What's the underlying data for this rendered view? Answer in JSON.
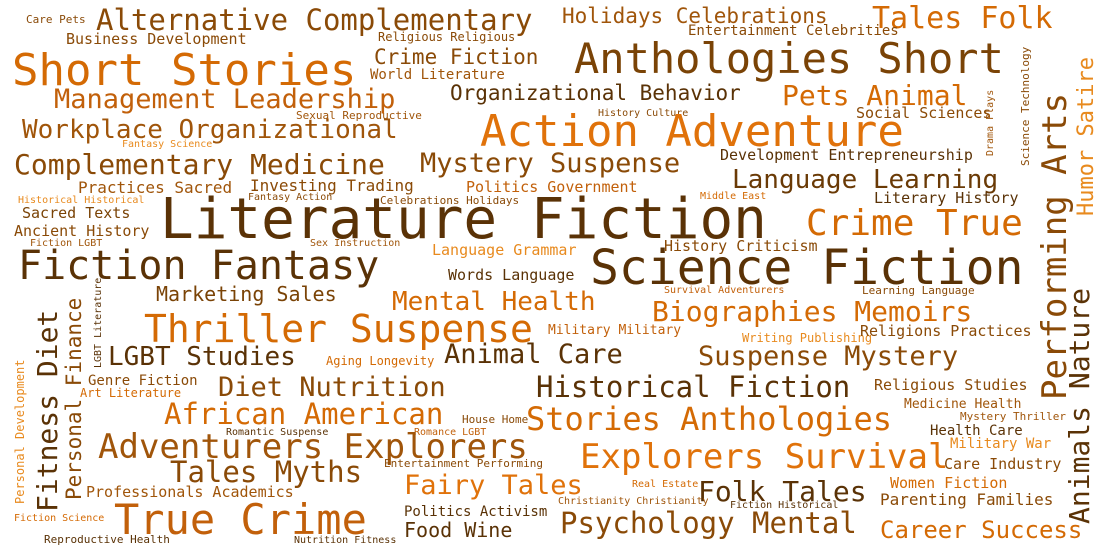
{
  "palette": {
    "dark_brown": "#5a3206",
    "brown": "#8a4a07",
    "orange": "#d46a04",
    "light_orange": "#e88a1e"
  },
  "words": [
    {
      "text": "Care Pets",
      "color": "#8a4a07"
    },
    {
      "text": "Alternative Complementary",
      "color": "#8a4a07"
    },
    {
      "text": "Holidays Celebrations",
      "color": "#a0550a"
    },
    {
      "text": "Tales Folk",
      "color": "#d46a04"
    },
    {
      "text": "Business Development",
      "color": "#8a4a07"
    },
    {
      "text": "Religious Religious",
      "color": "#8a4a07"
    },
    {
      "text": "Entertainment Celebrities",
      "color": "#8a4a07"
    },
    {
      "text": "Crime Fiction",
      "color": "#8a4a07"
    },
    {
      "text": "Short Stories",
      "color": "#d46a04"
    },
    {
      "text": "Anthologies Short",
      "color": "#7a4306"
    },
    {
      "text": "World Literature",
      "color": "#a0550a"
    },
    {
      "text": "Management Leadership",
      "color": "#c2600a"
    },
    {
      "text": "Organizational Behavior",
      "color": "#5a3206"
    },
    {
      "text": "Pets Animal",
      "color": "#d46a04"
    },
    {
      "text": "History Culture",
      "color": "#8a4a07"
    },
    {
      "text": "Sexual Reproductive",
      "color": "#a0550a"
    },
    {
      "text": "Social Sciences",
      "color": "#8a4a07"
    },
    {
      "text": "Workplace Organizational",
      "color": "#a0550a"
    },
    {
      "text": "Action Adventure",
      "color": "#e0720a"
    },
    {
      "text": "Fantasy Science",
      "color": "#e88a1e"
    },
    {
      "text": "Complementary Medicine",
      "color": "#8a4a07"
    },
    {
      "text": "Mystery Suspense",
      "color": "#8a4a07"
    },
    {
      "text": "Development Entrepreneurship",
      "color": "#5a3206"
    },
    {
      "text": "Language Learning",
      "color": "#6a3a06"
    },
    {
      "text": "Practices Sacred",
      "color": "#a0550a"
    },
    {
      "text": "Investing Trading",
      "color": "#8a4a07"
    },
    {
      "text": "Politics Government",
      "color": "#c2600a"
    },
    {
      "text": "Historical Historical",
      "color": "#e88a1e"
    },
    {
      "text": "Fantasy Action",
      "color": "#8a4a07"
    },
    {
      "text": "Celebrations Holidays",
      "color": "#8a4a07"
    },
    {
      "text": "Middle East",
      "color": "#d46a04"
    },
    {
      "text": "Literary History",
      "color": "#5a3206"
    },
    {
      "text": "Sacred Texts",
      "color": "#7a4306"
    },
    {
      "text": "Literature Fiction",
      "color": "#5a3206"
    },
    {
      "text": "Crime True",
      "color": "#d46a04"
    },
    {
      "text": "Ancient History",
      "color": "#8a4a07"
    },
    {
      "text": "Fiction LGBT",
      "color": "#a0550a"
    },
    {
      "text": "Sex Instruction",
      "color": "#a0550a"
    },
    {
      "text": "Language Grammar",
      "color": "#e88a1e"
    },
    {
      "text": "History Criticism",
      "color": "#8a4a07"
    },
    {
      "text": "Fiction Fantasy",
      "color": "#5a3206"
    },
    {
      "text": "Science Fiction",
      "color": "#5a3206"
    },
    {
      "text": "Words Language",
      "color": "#5a3206"
    },
    {
      "text": "Marketing Sales",
      "color": "#7a4306"
    },
    {
      "text": "Survival Adventurers",
      "color": "#c2600a"
    },
    {
      "text": "Learning Language",
      "color": "#8a4a07"
    },
    {
      "text": "Mental Health",
      "color": "#d46a04"
    },
    {
      "text": "Biographies Memoirs",
      "color": "#d46a04"
    },
    {
      "text": "Thriller Suspense",
      "color": "#d46a04"
    },
    {
      "text": "Military Military",
      "color": "#c2600a"
    },
    {
      "text": "Writing Publishing",
      "color": "#e88a1e"
    },
    {
      "text": "Religions Practices",
      "color": "#8a4a07"
    },
    {
      "text": "LGBT Studies",
      "color": "#5a3206"
    },
    {
      "text": "Aging Longevity",
      "color": "#d46a04"
    },
    {
      "text": "Animal Care",
      "color": "#5a3206"
    },
    {
      "text": "Suspense Mystery",
      "color": "#8a4a07"
    },
    {
      "text": "Genre Fiction",
      "color": "#8a4a07"
    },
    {
      "text": "Art Literature",
      "color": "#d46a04"
    },
    {
      "text": "Diet Nutrition",
      "color": "#8a4a07"
    },
    {
      "text": "Historical Fiction",
      "color": "#5a3206"
    },
    {
      "text": "Religious Studies",
      "color": "#8a4a07"
    },
    {
      "text": "African American",
      "color": "#d46a04"
    },
    {
      "text": "Stories Anthologies",
      "color": "#d46a04"
    },
    {
      "text": "House Home",
      "color": "#8a4a07"
    },
    {
      "text": "Medicine Health",
      "color": "#a0550a"
    },
    {
      "text": "Mystery Thriller",
      "color": "#a0550a"
    },
    {
      "text": "Romantic Suspense",
      "color": "#5a3206"
    },
    {
      "text": "Romance LGBT",
      "color": "#c2600a"
    },
    {
      "text": "Health Care",
      "color": "#5a3206"
    },
    {
      "text": "Adventurers Explorers",
      "color": "#a0550a"
    },
    {
      "text": "Military War",
      "color": "#e88a1e"
    },
    {
      "text": "Explorers Survival",
      "color": "#e0720a"
    },
    {
      "text": "Tales Myths",
      "color": "#8a4a07"
    },
    {
      "text": "Entertainment Performing",
      "color": "#8a4a07"
    },
    {
      "text": "Care Industry",
      "color": "#8a4a07"
    },
    {
      "text": "Fairy Tales",
      "color": "#e0720a"
    },
    {
      "text": "Real Estate",
      "color": "#d46a04"
    },
    {
      "text": "Folk Tales",
      "color": "#5a3206"
    },
    {
      "text": "Women Fiction",
      "color": "#d46a04"
    },
    {
      "text": "Professionals Academics",
      "color": "#a0550a"
    },
    {
      "text": "Christianity Christianity",
      "color": "#a0550a"
    },
    {
      "text": "Parenting Families",
      "color": "#8a4a07"
    },
    {
      "text": "True Crime",
      "color": "#c2600a"
    },
    {
      "text": "Fiction Historical",
      "color": "#5a3206"
    },
    {
      "text": "Fiction Science",
      "color": "#d46a04"
    },
    {
      "text": "Politics Activism",
      "color": "#5a3206"
    },
    {
      "text": "Psychology Mental",
      "color": "#8a4a07"
    },
    {
      "text": "Food Wine",
      "color": "#5a3206"
    },
    {
      "text": "Career Success",
      "color": "#d46a04"
    },
    {
      "text": "Reproductive Health",
      "color": "#5a3206"
    },
    {
      "text": "Nutrition Fitness",
      "color": "#5a3206"
    },
    {
      "text": "Science Technology",
      "color": "#8a4a07"
    },
    {
      "text": "Drama Plays",
      "color": "#a0550a"
    },
    {
      "text": "Humor Satire",
      "color": "#e88a1e"
    },
    {
      "text": "Performing Arts",
      "color": "#8a4a07"
    },
    {
      "text": "Animals Nature",
      "color": "#5a3206"
    },
    {
      "text": "Fitness Diet",
      "color": "#5a3206"
    },
    {
      "text": "Personal Finance",
      "color": "#8a4a07"
    },
    {
      "text": "Personal Development",
      "color": "#e88a1e"
    },
    {
      "text": "LGBT Literature",
      "color": "#5a3206"
    }
  ]
}
